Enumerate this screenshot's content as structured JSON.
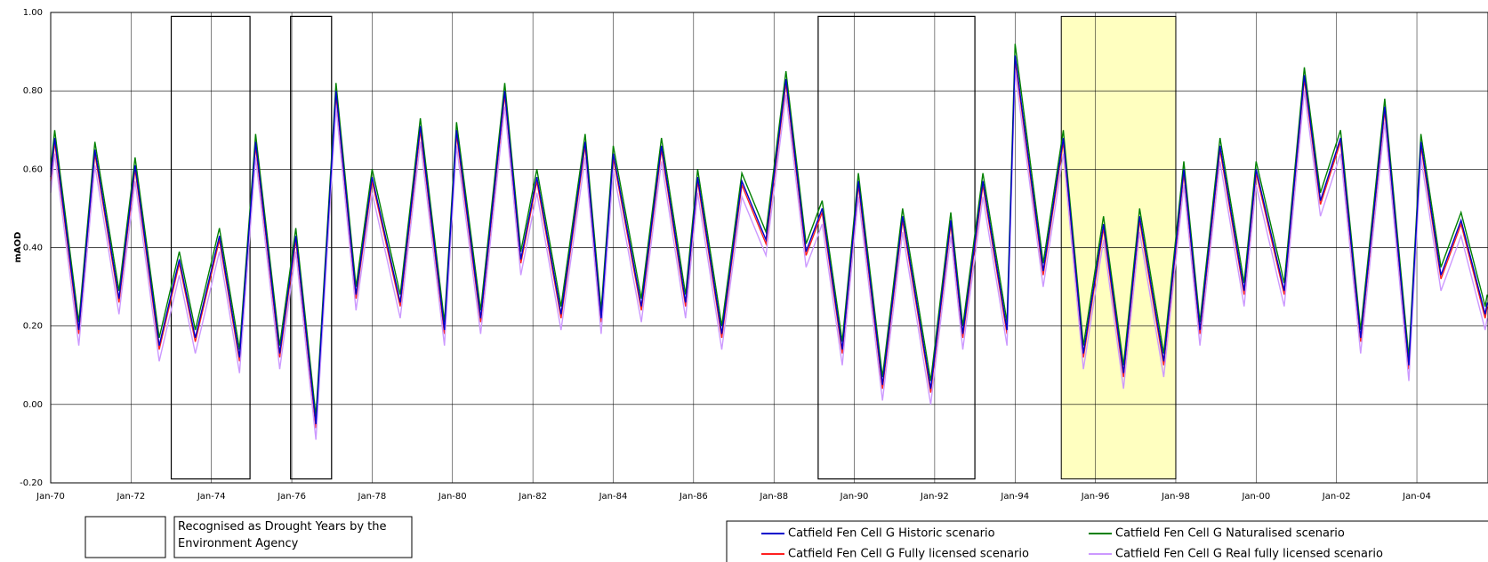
{
  "chart_data": {
    "type": "line",
    "y_label": "mAOD",
    "xlim": [
      1970,
      2005.77
    ],
    "ylim": [
      -0.2,
      1.0
    ],
    "yticks": [
      {
        "value": 1.0,
        "label": "1.00"
      },
      {
        "value": 0.8,
        "label": "0.80"
      },
      {
        "value": 0.6,
        "label": "0.60"
      },
      {
        "value": 0.4,
        "label": "0.40"
      },
      {
        "value": 0.2,
        "label": "0.20"
      },
      {
        "value": 0,
        "label": "0.00"
      },
      {
        "value": -0.2,
        "label": "-0.20"
      }
    ],
    "xticks": [
      {
        "value": 1970,
        "label": "Jan-70"
      },
      {
        "value": 1972,
        "label": "Jan-72"
      },
      {
        "value": 1974,
        "label": "Jan-74"
      },
      {
        "value": 1976,
        "label": "Jan-76"
      },
      {
        "value": 1978,
        "label": "Jan-78"
      },
      {
        "value": 1980,
        "label": "Jan-80"
      },
      {
        "value": 1982,
        "label": "Jan-82"
      },
      {
        "value": 1984,
        "label": "Jan-84"
      },
      {
        "value": 1986,
        "label": "Jan-86"
      },
      {
        "value": 1988,
        "label": "Jan-88"
      },
      {
        "value": 1990,
        "label": "Jan-90"
      },
      {
        "value": 1992,
        "label": "Jan-92"
      },
      {
        "value": 1994,
        "label": "Jan-94"
      },
      {
        "value": 1996,
        "label": "Jan-96"
      },
      {
        "value": 1998,
        "label": "Jan-98"
      },
      {
        "value": 2000,
        "label": "Jan-00"
      },
      {
        "value": 2002,
        "label": "Jan-02"
      },
      {
        "value": 2004,
        "label": "Jan-04"
      }
    ],
    "grid": true,
    "drought_periods": [
      [
        1973.0,
        1974.96
      ],
      [
        1975.97,
        1976.99
      ],
      [
        1989.1,
        1993.0
      ]
    ],
    "drought_legend": "Recognised as Drought Years by the Environment Agency",
    "highlight_period": [
      1995.15,
      1998.0
    ],
    "highlight_color": "#ffffc0",
    "x": [
      1970.0,
      1970.1,
      1970.7,
      1971.1,
      1971.7,
      1972.1,
      1972.7,
      1973.2,
      1973.6,
      1974.2,
      1974.7,
      1975.1,
      1975.7,
      1976.1,
      1976.6,
      1977.1,
      1977.6,
      1978.0,
      1978.7,
      1979.2,
      1979.8,
      1980.1,
      1980.7,
      1981.3,
      1981.7,
      1982.1,
      1982.7,
      1983.3,
      1983.7,
      1984.0,
      1984.7,
      1985.2,
      1985.8,
      1986.1,
      1986.7,
      1987.2,
      1987.8,
      1988.3,
      1988.8,
      1989.2,
      1989.7,
      1990.1,
      1990.7,
      1991.2,
      1991.9,
      1992.4,
      1992.7,
      1993.2,
      1993.8,
      1994.0,
      1994.7,
      1995.2,
      1995.7,
      1996.2,
      1996.7,
      1997.1,
      1997.7,
      1998.2,
      1998.6,
      1999.1,
      1999.7,
      2000.0,
      2000.7,
      2001.2,
      2001.6,
      2002.1,
      2002.6,
      2003.2,
      2003.8,
      2004.1,
      2004.6,
      2005.1,
      2005.7,
      2005.75
    ],
    "series": [
      {
        "name": "Catfield Fen Cell G Fully licensed scenario",
        "color": "#ff2020",
        "values": [
          0.57,
          0.67,
          0.18,
          0.64,
          0.26,
          0.6,
          0.14,
          0.36,
          0.16,
          0.42,
          0.11,
          0.66,
          0.12,
          0.42,
          -0.06,
          0.79,
          0.27,
          0.57,
          0.25,
          0.7,
          0.18,
          0.69,
          0.21,
          0.79,
          0.36,
          0.57,
          0.22,
          0.66,
          0.21,
          0.63,
          0.24,
          0.65,
          0.25,
          0.57,
          0.17,
          0.56,
          0.41,
          0.82,
          0.38,
          0.49,
          0.13,
          0.56,
          0.04,
          0.47,
          0.03,
          0.46,
          0.17,
          0.56,
          0.18,
          0.88,
          0.33,
          0.67,
          0.12,
          0.45,
          0.07,
          0.47,
          0.1,
          0.59,
          0.18,
          0.65,
          0.28,
          0.59,
          0.28,
          0.83,
          0.51,
          0.67,
          0.16,
          0.75,
          0.09,
          0.66,
          0.32,
          0.46,
          0.22,
          0.25
        ]
      },
      {
        "name": "Catfield Fen Cell G Real fully licensed scenario",
        "color": "#cc99ff",
        "values": [
          0.54,
          0.64,
          0.15,
          0.61,
          0.23,
          0.57,
          0.11,
          0.33,
          0.13,
          0.39,
          0.08,
          0.63,
          0.09,
          0.39,
          -0.09,
          0.76,
          0.24,
          0.54,
          0.22,
          0.67,
          0.15,
          0.66,
          0.18,
          0.76,
          0.33,
          0.54,
          0.19,
          0.63,
          0.18,
          0.6,
          0.21,
          0.62,
          0.22,
          0.54,
          0.14,
          0.53,
          0.38,
          0.79,
          0.35,
          0.46,
          0.1,
          0.53,
          0.01,
          0.44,
          0.0,
          0.43,
          0.14,
          0.53,
          0.15,
          0.85,
          0.3,
          0.64,
          0.09,
          0.42,
          0.04,
          0.44,
          0.07,
          0.56,
          0.15,
          0.62,
          0.25,
          0.56,
          0.25,
          0.8,
          0.48,
          0.64,
          0.13,
          0.72,
          0.06,
          0.63,
          0.29,
          0.43,
          0.19,
          0.22
        ]
      },
      {
        "name": "Catfield Fen Cell G Naturalised scenario",
        "color": "#008000",
        "values": [
          0.6,
          0.7,
          0.21,
          0.67,
          0.29,
          0.63,
          0.17,
          0.39,
          0.19,
          0.45,
          0.14,
          0.69,
          0.15,
          0.45,
          -0.03,
          0.82,
          0.3,
          0.6,
          0.28,
          0.73,
          0.21,
          0.72,
          0.24,
          0.82,
          0.39,
          0.6,
          0.25,
          0.69,
          0.24,
          0.66,
          0.27,
          0.68,
          0.28,
          0.6,
          0.2,
          0.59,
          0.44,
          0.85,
          0.41,
          0.52,
          0.16,
          0.59,
          0.07,
          0.5,
          0.06,
          0.49,
          0.2,
          0.59,
          0.21,
          0.92,
          0.36,
          0.7,
          0.15,
          0.48,
          0.1,
          0.5,
          0.13,
          0.62,
          0.21,
          0.68,
          0.31,
          0.62,
          0.31,
          0.86,
          0.54,
          0.7,
          0.19,
          0.78,
          0.12,
          0.69,
          0.35,
          0.49,
          0.25,
          0.28
        ]
      },
      {
        "name": "Catfield Fen Cell G Historic scenario",
        "color": "#0000cc",
        "values": [
          0.58,
          0.68,
          0.19,
          0.65,
          0.27,
          0.61,
          0.15,
          0.37,
          0.17,
          0.43,
          0.12,
          0.67,
          0.13,
          0.43,
          -0.05,
          0.8,
          0.28,
          0.58,
          0.26,
          0.71,
          0.19,
          0.7,
          0.22,
          0.8,
          0.37,
          0.58,
          0.23,
          0.67,
          0.22,
          0.64,
          0.25,
          0.66,
          0.26,
          0.58,
          0.18,
          0.57,
          0.42,
          0.83,
          0.39,
          0.5,
          0.14,
          0.57,
          0.05,
          0.48,
          0.04,
          0.47,
          0.18,
          0.57,
          0.19,
          0.89,
          0.34,
          0.68,
          0.13,
          0.46,
          0.08,
          0.48,
          0.11,
          0.6,
          0.19,
          0.66,
          0.29,
          0.6,
          0.29,
          0.84,
          0.52,
          0.68,
          0.17,
          0.76,
          0.1,
          0.67,
          0.33,
          0.47,
          0.23,
          0.26
        ]
      }
    ]
  }
}
